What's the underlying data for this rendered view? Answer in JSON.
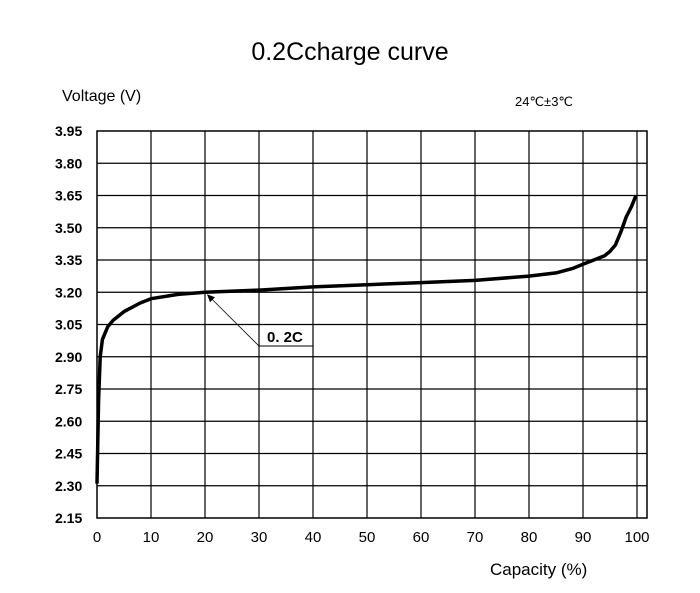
{
  "chart_data": {
    "type": "line",
    "title": "0.2Ccharge curve",
    "ylabel": "Voltage  (V)",
    "xlabel": "Capacity  (%)",
    "condition": "24℃±3℃",
    "xlim": [
      0,
      102
    ],
    "ylim": [
      2.15,
      3.95
    ],
    "grid": true,
    "x_ticks": [
      "0",
      "10",
      "20",
      "30",
      "40",
      "50",
      "60",
      "70",
      "80",
      "90",
      "100"
    ],
    "y_ticks": [
      "3.95",
      "3.80",
      "3.65",
      "3.50",
      "3.35",
      "3.20",
      "3.05",
      "2.90",
      "2.75",
      "2.60",
      "2.45",
      "2.30",
      "2.15"
    ],
    "series": [
      {
        "name": "0. 2C",
        "x": [
          0,
          0.3,
          0.6,
          1,
          2,
          3,
          5,
          8,
          10,
          15,
          20,
          30,
          40,
          50,
          60,
          70,
          80,
          85,
          88,
          90,
          92,
          94,
          95,
          96,
          97,
          98,
          99,
          99.8
        ],
        "y": [
          2.31,
          2.7,
          2.9,
          2.98,
          3.04,
          3.07,
          3.11,
          3.15,
          3.17,
          3.19,
          3.2,
          3.21,
          3.225,
          3.235,
          3.245,
          3.255,
          3.275,
          3.29,
          3.31,
          3.33,
          3.35,
          3.37,
          3.39,
          3.42,
          3.48,
          3.55,
          3.6,
          3.65
        ]
      }
    ],
    "annotation": {
      "text": "0. 2C",
      "points_to": [
        20,
        3.2
      ]
    },
    "colors": {
      "line": "#000000",
      "grid": "#000000",
      "background": "#ffffff"
    }
  }
}
